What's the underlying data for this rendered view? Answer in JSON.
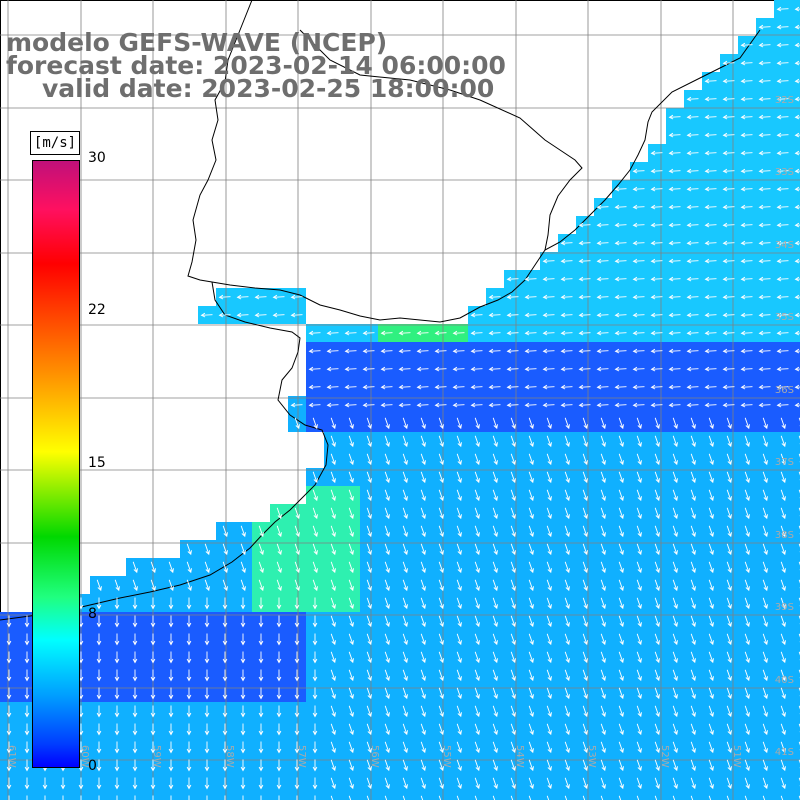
{
  "title": {
    "line1": "modelo GEFS-WAVE (NCEP)",
    "line2": "forecast date: 2023-02-14 06:00:00",
    "line3": "valid date: 2023-02-25 18:00:00"
  },
  "colorbar": {
    "unit": "[m/s]",
    "ticks": [
      "30",
      "22",
      "15",
      "8",
      "0"
    ],
    "tick_values": [
      30,
      22,
      15,
      8,
      0
    ],
    "range": [
      0,
      30
    ],
    "colors": [
      "#0000ff",
      "#0040ff",
      "#00a0ff",
      "#00ffff",
      "#20ff80",
      "#00d800",
      "#ffff00",
      "#ff9000",
      "#ff4000",
      "#ff0000",
      "#ff1060",
      "#c0107a"
    ]
  },
  "grid": {
    "lat_labels": [
      "32S",
      "33S",
      "34S",
      "35S",
      "36S",
      "37S",
      "38S",
      "39S",
      "40S",
      "41S"
    ],
    "lon_labels": [
      "61W",
      "60W",
      "59W",
      "58W",
      "57W",
      "56W",
      "55W",
      "54W",
      "53W",
      "52W",
      "51W"
    ]
  },
  "map": {
    "field": "wind speed and direction",
    "land_color": "#ffffff",
    "coastline_color": "#000000",
    "grid_color": "#808080",
    "arrow_color": "#ffffff"
  }
}
